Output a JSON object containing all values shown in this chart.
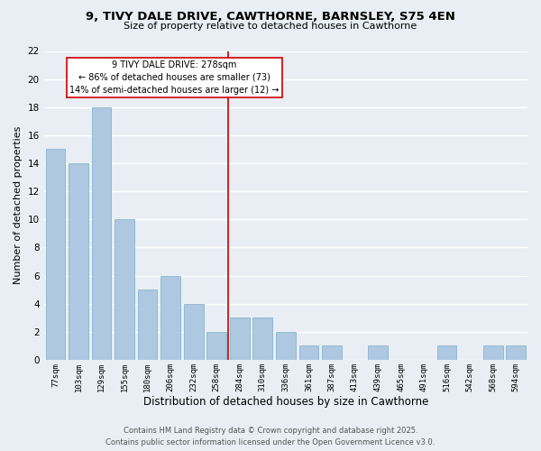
{
  "title1": "9, TIVY DALE DRIVE, CAWTHORNE, BARNSLEY, S75 4EN",
  "title2": "Size of property relative to detached houses in Cawthorne",
  "xlabel": "Distribution of detached houses by size in Cawthorne",
  "ylabel": "Number of detached properties",
  "categories": [
    "77sqm",
    "103sqm",
    "129sqm",
    "155sqm",
    "180sqm",
    "206sqm",
    "232sqm",
    "258sqm",
    "284sqm",
    "310sqm",
    "336sqm",
    "361sqm",
    "387sqm",
    "413sqm",
    "439sqm",
    "465sqm",
    "491sqm",
    "516sqm",
    "542sqm",
    "568sqm",
    "594sqm"
  ],
  "values": [
    15,
    14,
    18,
    10,
    5,
    6,
    4,
    2,
    3,
    3,
    2,
    1,
    1,
    0,
    1,
    0,
    0,
    1,
    0,
    1,
    1
  ],
  "bar_color": "#adc8e0",
  "bar_edge_color": "#7aaec8",
  "background_color": "#e8eef4",
  "grid_color": "#ffffff",
  "vline_index": 7.5,
  "vline_color": "#cc0000",
  "vline_label": "9 TIVY DALE DRIVE: 278sqm",
  "annotation_line1": "← 86% of detached houses are smaller (73)",
  "annotation_line2": "14% of semi-detached houses are larger (12) →",
  "annotation_box_color": "#ffffff",
  "annotation_box_edge": "#cc0000",
  "ylim": [
    0,
    22
  ],
  "yticks": [
    0,
    2,
    4,
    6,
    8,
    10,
    12,
    14,
    16,
    18,
    20,
    22
  ],
  "title1_fontsize": 9.5,
  "title2_fontsize": 8,
  "xlabel_fontsize": 8.5,
  "ylabel_fontsize": 8,
  "tick_fontsize": 6.5,
  "ytick_fontsize": 7.5,
  "annotation_fontsize": 7,
  "footer_fontsize": 6,
  "footer1": "Contains HM Land Registry data © Crown copyright and database right 2025.",
  "footer2": "Contains public sector information licensed under the Open Government Licence v3.0."
}
